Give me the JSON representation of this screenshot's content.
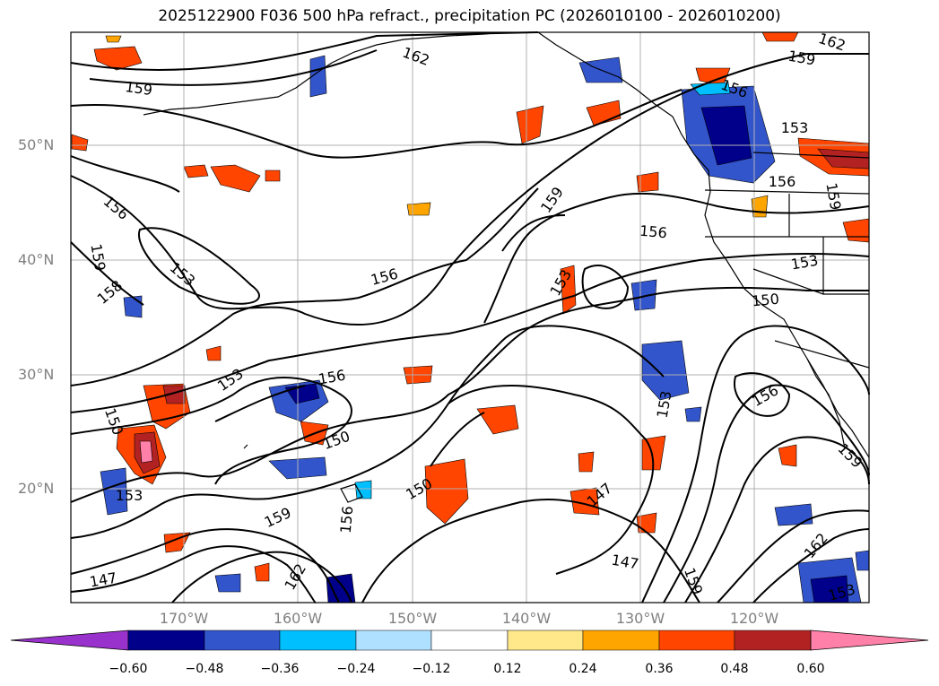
{
  "title": "2025122900 F036 500 hPa refract., precipitation PC (2026010100 - 2026010200)",
  "lat_labels": [
    "50°N",
    "40°N",
    "30°N",
    "20°N"
  ],
  "lon_labels": [
    "170°W",
    "160°W",
    "150°W",
    "140°W",
    "130°W",
    "120°W"
  ],
  "colorbar": {
    "ticks": [
      "−0.60",
      "−0.48",
      "−0.36",
      "−0.24",
      "−0.12",
      "0.12",
      "0.24",
      "0.36",
      "0.48",
      "0.60"
    ],
    "colors": [
      "#9932cc",
      "#00008b",
      "#3355cc",
      "#00bfff",
      "#b0e0ff",
      "#ffffff",
      "#ffe88a",
      "#ffa500",
      "#ff4500",
      "#b22222",
      "#ff80a8"
    ]
  },
  "contour_labels": [
    {
      "text": "162",
      "rot": 18
    },
    {
      "text": "159",
      "rot": 10
    },
    {
      "text": "162",
      "rot": 20
    },
    {
      "text": "159",
      "rot": 8
    },
    {
      "text": "156",
      "rot": 20
    },
    {
      "text": "153",
      "rot": 0
    },
    {
      "text": "156",
      "rot": 0
    },
    {
      "text": "159",
      "rot": 80
    },
    {
      "text": "156",
      "rot": 40
    },
    {
      "text": "153",
      "rot": 40
    },
    {
      "text": "156",
      "rot": -15
    },
    {
      "text": "159",
      "rot": -55
    },
    {
      "text": "156",
      "rot": 5
    },
    {
      "text": "153",
      "rot": -10
    },
    {
      "text": "153",
      "rot": -60
    },
    {
      "text": "150",
      "rot": -5
    },
    {
      "text": "158",
      "rot": -40
    },
    {
      "text": "159",
      "rot": 80
    },
    {
      "text": "153",
      "rot": -35
    },
    {
      "text": "156",
      "rot": -10
    },
    {
      "text": "150",
      "rot": -20
    },
    {
      "text": "153",
      "rot": -80
    },
    {
      "text": "156",
      "rot": -30
    },
    {
      "text": "150",
      "rot": 70
    },
    {
      "text": "153",
      "rot": 0
    },
    {
      "text": "150",
      "rot": -30
    },
    {
      "text": "156",
      "rot": -85
    },
    {
      "text": "159",
      "rot": -25
    },
    {
      "text": "147",
      "rot": -40
    },
    {
      "text": "147",
      "rot": 10
    },
    {
      "text": "162",
      "rot": -60
    },
    {
      "text": "147",
      "rot": -10
    },
    {
      "text": "159",
      "rot": 70
    },
    {
      "text": "159",
      "rot": 45
    },
    {
      "text": "162",
      "rot": -50
    },
    {
      "text": "153",
      "rot": -15
    },
    {
      "text": "156",
      "rot": -25
    }
  ]
}
